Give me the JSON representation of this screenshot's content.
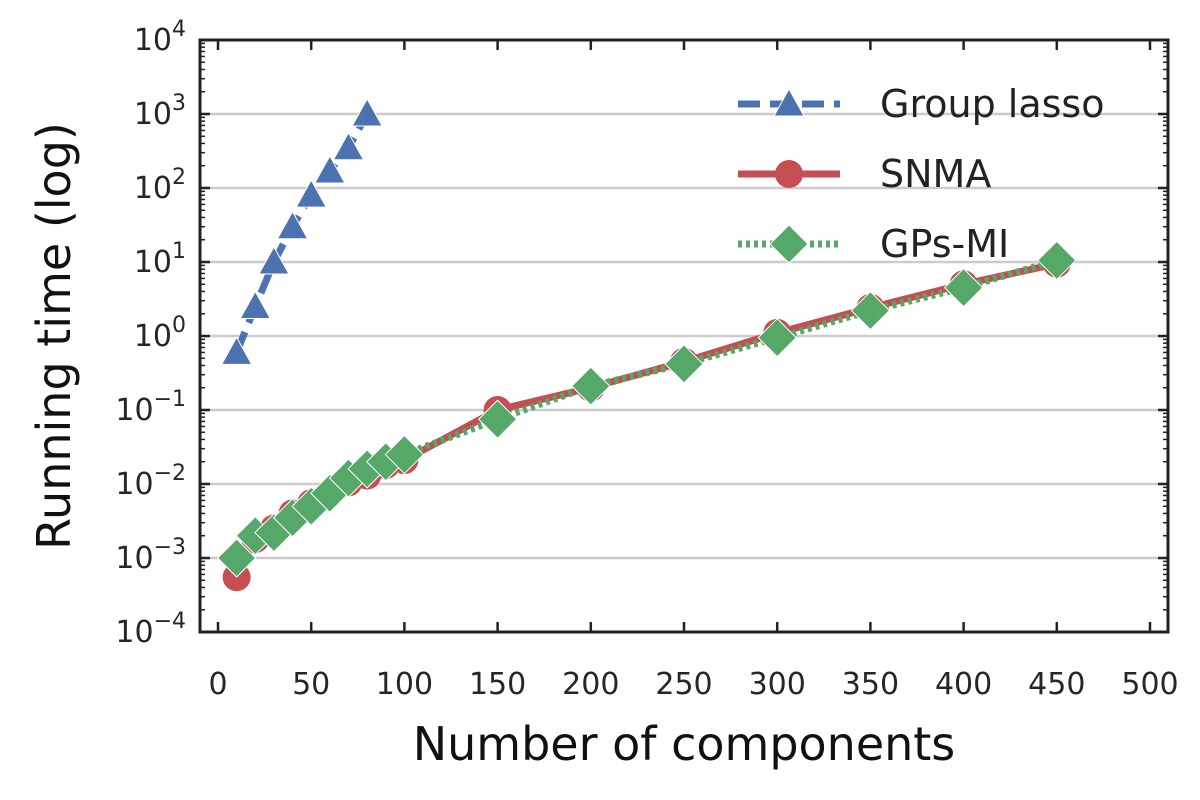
{
  "chart_data": {
    "type": "line",
    "xlabel": "Number of components",
    "ylabel": "Running time (log)",
    "y_scale": "log",
    "xlim": [
      0,
      500
    ],
    "ylim": [
      0.0001,
      10000
    ],
    "x_ticks": [
      "0",
      "50",
      "100",
      "150",
      "200",
      "250",
      "300",
      "350",
      "400",
      "450",
      "500"
    ],
    "y_tick_exponents": [
      "−4",
      "−3",
      "−2",
      "−1",
      "0",
      "1",
      "2",
      "3",
      "4"
    ],
    "y_tick_base": "10",
    "grid": "horizontal",
    "legend_position": "top-right",
    "series": [
      {
        "name": "Group lasso",
        "color": "#4C72B0",
        "line_style": "dashed",
        "marker": "triangle",
        "x": [
          10,
          20,
          30,
          40,
          50,
          60,
          70,
          80
        ],
        "y": [
          0.6,
          2.5,
          10,
          30,
          80,
          170,
          350,
          1000
        ]
      },
      {
        "name": "SNMA",
        "color": "#C44E52",
        "line_style": "solid",
        "marker": "circle",
        "x": [
          10,
          20,
          30,
          40,
          50,
          60,
          70,
          80,
          90,
          100,
          150,
          200,
          250,
          300,
          350,
          400,
          450
        ],
        "y": [
          0.00055,
          0.0018,
          0.0025,
          0.004,
          0.0055,
          0.0075,
          0.0105,
          0.013,
          0.018,
          0.021,
          0.1,
          0.2,
          0.45,
          1.1,
          2.4,
          5,
          9.5
        ]
      },
      {
        "name": "GPs-MI",
        "color": "#55A868",
        "line_style": "dotted",
        "marker": "diamond",
        "x": [
          10,
          20,
          30,
          40,
          50,
          60,
          70,
          80,
          90,
          100,
          150,
          200,
          250,
          300,
          350,
          400,
          450
        ],
        "y": [
          0.001,
          0.002,
          0.0022,
          0.0035,
          0.005,
          0.0075,
          0.012,
          0.016,
          0.02,
          0.025,
          0.075,
          0.21,
          0.42,
          0.95,
          2.2,
          4.5,
          10.5
        ]
      }
    ]
  }
}
